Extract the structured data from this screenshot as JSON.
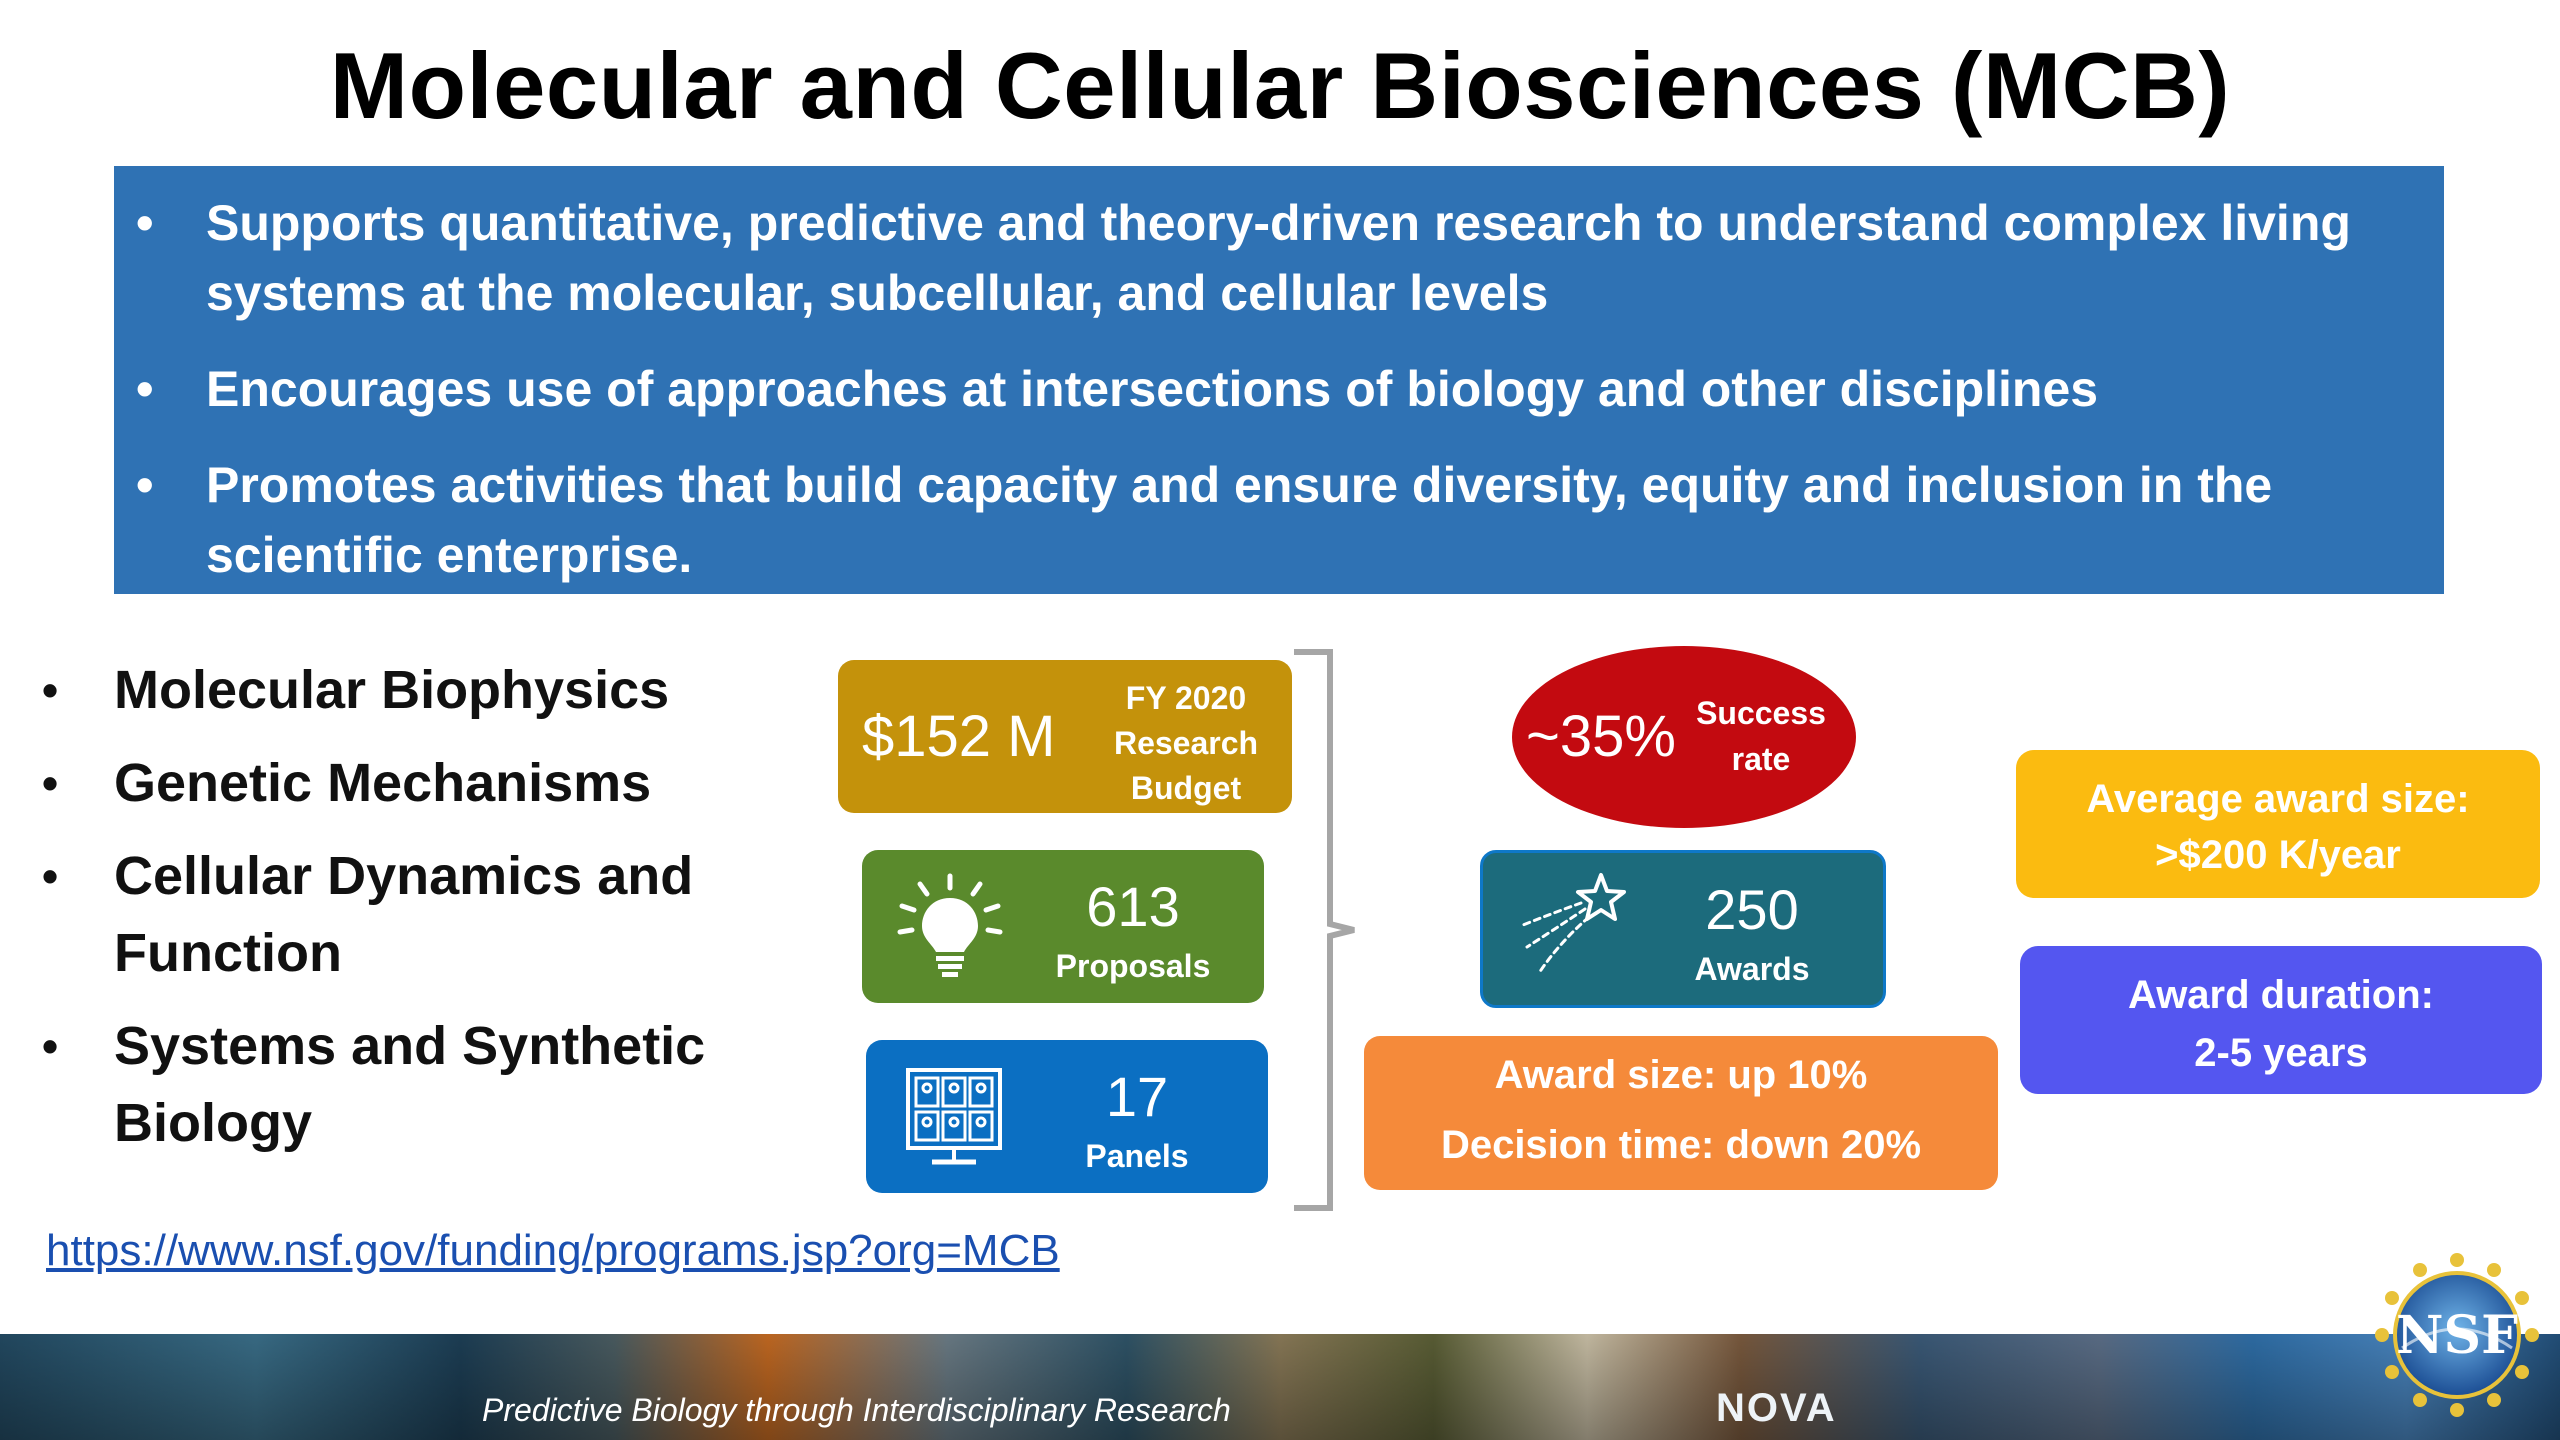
{
  "title": "Molecular and Cellular Biosciences (MCB)",
  "bullets": [
    "Supports quantitative, predictive and theory-driven research to understand complex living systems at the molecular, subcellular, and cellular levels",
    "Encourages use of approaches at intersections of biology and other disciplines",
    "Promotes activities that build capacity and ensure diversity, equity and inclusion in the scientific enterprise."
  ],
  "bullet_symbol": "•",
  "areas": [
    "Molecular Biophysics",
    "Genetic Mechanisms",
    "Cellular Dynamics and Function",
    "Systems and Synthetic Biology"
  ],
  "stats": {
    "budget": {
      "value": "$152 M",
      "label_1": "FY 2020",
      "label_2": "Research",
      "label_3": "Budget",
      "color": "#c4920b"
    },
    "proposals": {
      "value": "613",
      "label": "Proposals",
      "icon": "lightbulb-icon",
      "color": "#5a8a2c"
    },
    "panels": {
      "value": "17",
      "label": "Panels",
      "icon": "video-conference-icon",
      "color": "#0b6fc2"
    },
    "success": {
      "value": "~35%",
      "label_1": "Success",
      "label_2": "rate",
      "color": "#c30a10"
    },
    "awards": {
      "value": "250",
      "label": "Awards",
      "icon": "shooting-star-icon",
      "color": "#1c6b7c"
    }
  },
  "changes": {
    "line_1": "Award size: up 10%",
    "line_2": "Decision time: down 20%",
    "color": "#f58a3a"
  },
  "average_award": {
    "line_1": "Average award size:",
    "line_2": ">$200 K/year",
    "color": "#fbbb10"
  },
  "duration": {
    "line_1": "Award duration:",
    "line_2": "2-5 years",
    "color": "#5456f0"
  },
  "link": "https://www.nsf.gov/funding/programs.jsp?org=MCB",
  "banner": {
    "caption": "Predictive Biology through Interdisciplinary Research",
    "nova": "NOVA"
  },
  "logo": {
    "text": "NSF",
    "icon": "nsf-logo-icon"
  }
}
